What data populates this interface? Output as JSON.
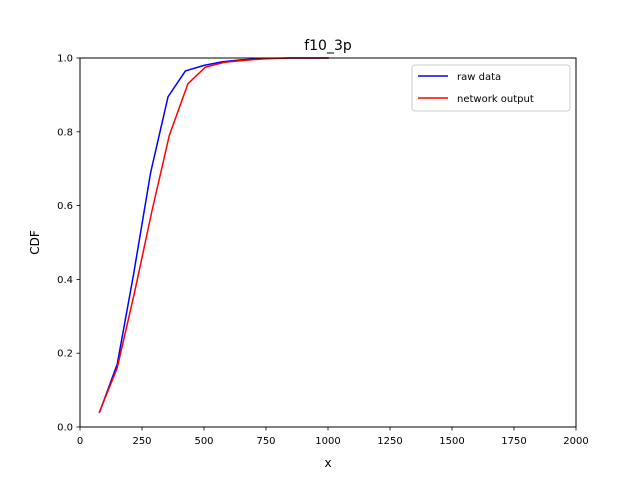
{
  "chart_data": {
    "type": "line",
    "title": "f10_3p",
    "xlabel": "x",
    "ylabel": "CDF",
    "xlim": [
      0,
      2000
    ],
    "ylim": [
      0,
      1.0
    ],
    "xticks": [
      0,
      250,
      500,
      750,
      1000,
      1250,
      1500,
      1750,
      2000
    ],
    "xtick_labels": [
      "0",
      "250",
      "500",
      "750",
      "1000",
      "1250",
      "1500",
      "1750",
      "2000"
    ],
    "yticks": [
      0.0,
      0.2,
      0.4,
      0.6,
      0.8,
      1.0
    ],
    "ytick_labels": [
      "0.0",
      "0.2",
      "0.4",
      "0.6",
      "0.8",
      "1.0"
    ],
    "grid": false,
    "legend_position": "top-right",
    "series": [
      {
        "name": "raw data",
        "color": "#0000ff",
        "x": [
          80,
          150,
          215,
          285,
          355,
          425,
          500,
          575,
          650,
          750,
          850,
          1000
        ],
        "y": [
          0.042,
          0.17,
          0.41,
          0.69,
          0.895,
          0.965,
          0.98,
          0.99,
          0.995,
          0.999,
          1.0,
          1.0
        ]
      },
      {
        "name": "network output",
        "color": "#ff0000",
        "x": [
          78,
          150,
          220,
          290,
          360,
          435,
          505,
          580,
          650,
          750,
          850,
          1000
        ],
        "y": [
          0.04,
          0.16,
          0.365,
          0.585,
          0.79,
          0.93,
          0.975,
          0.988,
          0.993,
          0.998,
          1.0,
          1.0
        ]
      }
    ]
  }
}
